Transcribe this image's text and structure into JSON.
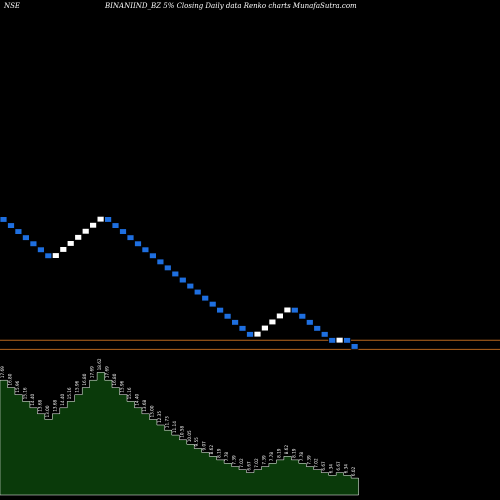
{
  "header": {
    "exchange": "NSE",
    "symbol": "BINANIIND_BZ",
    "brick": "5%",
    "description": "Closing Daily data  Renko  charts MunafaSutra.com"
  },
  "colors": {
    "background": "#000000",
    "up_brick": "#ffffff",
    "down_brick": "#1e6fe0",
    "brick_outline": "#000000",
    "level_line": "#b5651d",
    "volume_fill": "#0a3a0a",
    "volume_outline": "#ffffff",
    "label_text": "#ffffff"
  },
  "chart_data": {
    "type": "renko",
    "brick_size": "5%",
    "bricks": [
      {
        "dir": "down",
        "close": 17.69
      },
      {
        "dir": "down",
        "close": 16.8
      },
      {
        "dir": "down",
        "close": 15.96
      },
      {
        "dir": "down",
        "close": 15.16
      },
      {
        "dir": "down",
        "close": 14.4
      },
      {
        "dir": "down",
        "close": 13.68
      },
      {
        "dir": "down",
        "close": 13
      },
      {
        "dir": "up",
        "close": 13.68
      },
      {
        "dir": "up",
        "close": 14.4
      },
      {
        "dir": "up",
        "close": 15.16
      },
      {
        "dir": "up",
        "close": 15.96
      },
      {
        "dir": "up",
        "close": 16.8
      },
      {
        "dir": "up",
        "close": 17.69
      },
      {
        "dir": "up",
        "close": 18.62
      },
      {
        "dir": "down",
        "close": 17.69
      },
      {
        "dir": "down",
        "close": 16.8
      },
      {
        "dir": "down",
        "close": 15.96
      },
      {
        "dir": "down",
        "close": 15.16
      },
      {
        "dir": "down",
        "close": 14.4
      },
      {
        "dir": "down",
        "close": 13.68
      },
      {
        "dir": "down",
        "close": 13
      },
      {
        "dir": "down",
        "close": 12.35
      },
      {
        "dir": "down",
        "close": 11.73
      },
      {
        "dir": "down",
        "close": 11.14
      },
      {
        "dir": "down",
        "close": 10.58
      },
      {
        "dir": "down",
        "close": 10.05
      },
      {
        "dir": "down",
        "close": 9.55
      },
      {
        "dir": "down",
        "close": 9.07
      },
      {
        "dir": "down",
        "close": 8.62
      },
      {
        "dir": "down",
        "close": 8.19
      },
      {
        "dir": "down",
        "close": 7.78
      },
      {
        "dir": "down",
        "close": 7.39
      },
      {
        "dir": "down",
        "close": 7.02
      },
      {
        "dir": "down",
        "close": 6.67
      },
      {
        "dir": "up",
        "close": 7.02
      },
      {
        "dir": "up",
        "close": 7.39
      },
      {
        "dir": "up",
        "close": 7.78
      },
      {
        "dir": "up",
        "close": 8.19
      },
      {
        "dir": "up",
        "close": 8.62
      },
      {
        "dir": "down",
        "close": 8.19
      },
      {
        "dir": "down",
        "close": 7.78
      },
      {
        "dir": "down",
        "close": 7.39
      },
      {
        "dir": "down",
        "close": 7.02
      },
      {
        "dir": "down",
        "close": 6.67
      },
      {
        "dir": "down",
        "close": 6.34
      },
      {
        "dir": "up",
        "close": 6.67
      },
      {
        "dir": "down",
        "close": 6.34
      },
      {
        "dir": "down",
        "close": 6.02
      }
    ],
    "labels": [
      "17.69",
      "16.80",
      "15.96",
      "15.16",
      "14.40",
      "13.68",
      "13.00",
      "13.68",
      "14.40",
      "15.16",
      "15.96",
      "16.80",
      "17.69",
      "18.62",
      "17.69",
      "16.80",
      "15.96",
      "15.16",
      "14.40",
      "13.68",
      "13.00",
      "12.35",
      "11.73",
      "11.14",
      "10.58",
      "10.05",
      "9.55",
      "9.07",
      "8.62",
      "8.19",
      "7.78",
      "7.39",
      "7.02",
      "6.67",
      "7.02",
      "7.39",
      "7.78",
      "8.19",
      "8.62",
      "8.19",
      "7.78",
      "7.39",
      "7.02",
      "6.67",
      "6.34",
      "6.67",
      "6.34",
      "6.02"
    ],
    "reference_levels": [
      6.5,
      6.02
    ],
    "ylim": [
      5.5,
      20.5
    ],
    "grid": false
  }
}
